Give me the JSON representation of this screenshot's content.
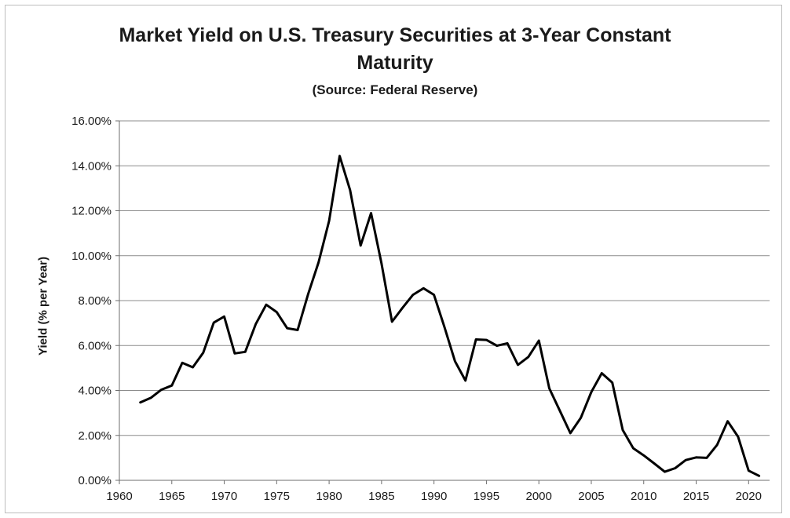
{
  "chart_data": {
    "type": "line",
    "title_line1": "Market Yield on U.S. Treasury Securities at 3-Year Constant",
    "title_line2": "Maturity",
    "subtitle": "(Source: Federal Reserve)",
    "xlabel": "",
    "ylabel": "Yield (% per Year)",
    "xlim": [
      1960,
      2022
    ],
    "ylim": [
      0,
      16
    ],
    "x_ticks": [
      1960,
      1965,
      1970,
      1975,
      1980,
      1985,
      1990,
      1995,
      2000,
      2005,
      2010,
      2015,
      2020
    ],
    "y_ticks": [
      0,
      2,
      4,
      6,
      8,
      10,
      12,
      14,
      16
    ],
    "y_tick_labels": [
      "0.00%",
      "2.00%",
      "4.00%",
      "6.00%",
      "8.00%",
      "10.00%",
      "12.00%",
      "14.00%",
      "16.00%"
    ],
    "grid": "horizontal",
    "line_color": "#000000",
    "series": [
      {
        "x": [
          1962,
          1963,
          1964,
          1965,
          1966,
          1967,
          1968,
          1969,
          1970,
          1971,
          1972,
          1973,
          1974,
          1975,
          1976,
          1977,
          1978,
          1979,
          1980,
          1981,
          1982,
          1983,
          1984,
          1985,
          1986,
          1987,
          1988,
          1989,
          1990,
          1991,
          1992,
          1993,
          1994,
          1995,
          1996,
          1997,
          1998,
          1999,
          2000,
          2001,
          2002,
          2003,
          2004,
          2005,
          2006,
          2007,
          2008,
          2009,
          2010,
          2011,
          2012,
          2013,
          2014,
          2015,
          2016,
          2017,
          2018,
          2019,
          2020,
          2021
        ],
        "values": [
          3.47,
          3.67,
          4.03,
          4.22,
          5.23,
          5.03,
          5.68,
          7.02,
          7.29,
          5.65,
          5.72,
          6.95,
          7.82,
          7.49,
          6.77,
          6.69,
          8.29,
          9.71,
          11.55,
          14.44,
          12.92,
          10.45,
          11.89,
          9.64,
          7.06,
          7.68,
          8.26,
          8.55,
          8.26,
          6.82,
          5.3,
          4.44,
          6.27,
          6.25,
          5.99,
          6.1,
          5.14,
          5.49,
          6.22,
          4.09,
          3.1,
          2.1,
          2.78,
          3.93,
          4.77,
          4.35,
          2.24,
          1.43,
          1.11,
          0.75,
          0.38,
          0.54,
          0.9,
          1.02,
          1.0,
          1.58,
          2.63,
          1.94,
          0.43,
          0.2
        ]
      }
    ]
  }
}
